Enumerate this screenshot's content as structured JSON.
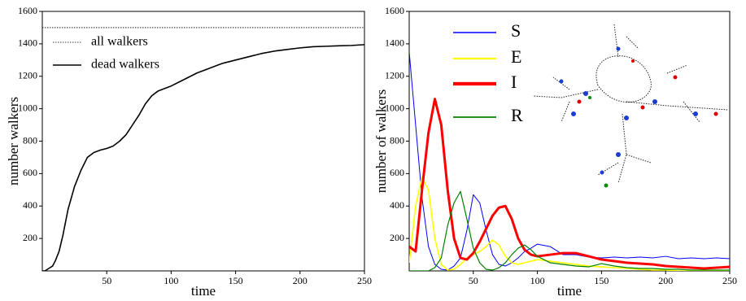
{
  "chart_data": [
    {
      "type": "line",
      "xlabel": "time",
      "ylabel": "number walkers",
      "x": [
        0,
        2,
        5,
        8,
        10,
        13,
        16,
        20,
        25,
        30,
        35,
        40,
        45,
        50,
        55,
        60,
        65,
        70,
        75,
        80,
        85,
        90,
        100,
        110,
        120,
        130,
        140,
        150,
        160,
        170,
        180,
        190,
        200,
        210,
        220,
        230,
        240,
        250
      ],
      "series": [
        {
          "name": "all walkers",
          "color": "#000000",
          "linestyle": "dotted",
          "linewidth": 0.8,
          "values": [
            1500,
            1500,
            1500,
            1500,
            1500,
            1500,
            1500,
            1500,
            1500,
            1500,
            1500,
            1500,
            1500,
            1500,
            1500,
            1500,
            1500,
            1500,
            1500,
            1500,
            1500,
            1500,
            1500,
            1500,
            1500,
            1500,
            1500,
            1500,
            1500,
            1500,
            1500,
            1500,
            1500,
            1500,
            1500,
            1500,
            1500,
            1500
          ]
        },
        {
          "name": "dead walkers",
          "color": "#000000",
          "linestyle": "solid",
          "linewidth": 1.6,
          "values": [
            0,
            0,
            15,
            30,
            60,
            120,
            220,
            380,
            520,
            620,
            700,
            730,
            745,
            755,
            770,
            800,
            840,
            900,
            960,
            1030,
            1080,
            1110,
            1140,
            1180,
            1220,
            1250,
            1280,
            1300,
            1320,
            1340,
            1355,
            1365,
            1375,
            1382,
            1385,
            1388,
            1390,
            1395
          ]
        }
      ],
      "xlim": [
        0,
        250
      ],
      "ylim": [
        0,
        1600
      ],
      "xticks": [
        50,
        100,
        150,
        200,
        250
      ],
      "yticks": [
        200,
        400,
        600,
        800,
        1000,
        1200,
        1400,
        1600
      ],
      "legend": "upper left",
      "grid": false
    },
    {
      "type": "line",
      "xlabel": "time",
      "ylabel": "number of walkers",
      "x": [
        0,
        5,
        10,
        15,
        20,
        25,
        30,
        35,
        40,
        45,
        50,
        55,
        60,
        65,
        70,
        75,
        80,
        85,
        90,
        95,
        100,
        110,
        120,
        130,
        140,
        150,
        160,
        170,
        180,
        190,
        200,
        210,
        220,
        230,
        240,
        250
      ],
      "series": [
        {
          "name": "S",
          "color": "#0000ff",
          "linestyle": "solid",
          "linewidth": 1,
          "values": [
            1350,
            900,
            450,
            150,
            40,
            10,
            5,
            30,
            80,
            250,
            470,
            420,
            250,
            100,
            40,
            30,
            50,
            80,
            120,
            140,
            165,
            150,
            100,
            100,
            85,
            80,
            85,
            80,
            85,
            80,
            90,
            75,
            80,
            75,
            80,
            75
          ]
        },
        {
          "name": "E",
          "color": "#ffff00",
          "linestyle": "solid",
          "linewidth": 1.6,
          "values": [
            50,
            400,
            580,
            500,
            200,
            40,
            5,
            10,
            40,
            80,
            100,
            120,
            150,
            190,
            160,
            90,
            50,
            40,
            50,
            60,
            70,
            60,
            50,
            40,
            30,
            25,
            20,
            15,
            10,
            5,
            5,
            0,
            0,
            0,
            0,
            0
          ]
        },
        {
          "name": "I",
          "color": "#ff0000",
          "linestyle": "solid",
          "linewidth": 3,
          "values": [
            150,
            120,
            500,
            850,
            1060,
            900,
            500,
            200,
            80,
            70,
            110,
            180,
            260,
            340,
            390,
            400,
            320,
            200,
            130,
            100,
            90,
            100,
            110,
            110,
            90,
            70,
            60,
            50,
            45,
            40,
            30,
            25,
            20,
            15,
            20,
            25
          ]
        },
        {
          "name": "R",
          "color": "#008000",
          "linestyle": "solid",
          "linewidth": 1.2,
          "values": [
            0,
            0,
            0,
            0,
            20,
            80,
            280,
            420,
            490,
            320,
            140,
            50,
            10,
            5,
            20,
            50,
            100,
            140,
            160,
            130,
            90,
            50,
            40,
            30,
            25,
            45,
            30,
            20,
            15,
            15,
            10,
            10,
            5,
            5,
            5,
            5
          ]
        }
      ],
      "xlim": [
        0,
        250
      ],
      "ylim": [
        0,
        1600
      ],
      "xticks": [
        50,
        100,
        150,
        200,
        250
      ],
      "yticks": [
        200,
        400,
        600,
        800,
        1000,
        1200,
        1400,
        1600
      ],
      "legend": "upper left",
      "grid": false
    }
  ]
}
